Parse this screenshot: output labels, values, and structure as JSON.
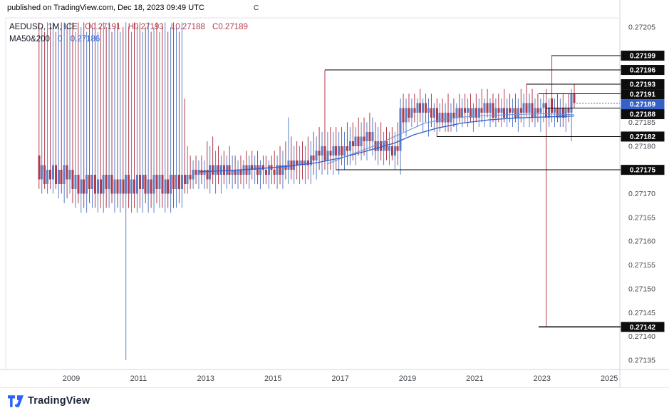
{
  "header": {
    "published_line": "published on TradingView.com, Dec 18, 2023 09:49 UTC",
    "stray_char": "C"
  },
  "legend": {
    "symbol_title": "AEDUSD, 1M, ICE",
    "ohlc": [
      "O0.27191",
      "H0.27193",
      "L0.27188",
      "C0.27189"
    ],
    "ma_label": "MA50&200",
    "ma_param": "0",
    "ma_value": "0.27186"
  },
  "footer": {
    "brand": "TradingView"
  },
  "colors": {
    "up": "#5b80c9",
    "down": "#b23a4a",
    "ma": "#2c5fd1",
    "ma2": "#6f93dc",
    "level_line": "#000000",
    "level_badge_bg": "#0d0d0d",
    "current_badge_bg": "#3461c7",
    "badge_text": "#ffffff",
    "axis_text": "#44484f",
    "frame": "#e0e3eb"
  },
  "chart_data": {
    "type": "candlestick",
    "title": "AEDUSD, 1M, ICE",
    "symbol": "AEDUSD",
    "timeframe": "1M",
    "price_encoding": "integer n means price = 0.27 + n/100000",
    "start_year": 2008,
    "interval_months": 1,
    "x_axis": {
      "ticks": [
        2009,
        2011,
        2013,
        2015,
        2017,
        2019,
        2021,
        2023,
        2025
      ],
      "range": [
        2007.7,
        2025.3
      ]
    },
    "y_axis": {
      "range": [
        0.27133,
        0.27207
      ],
      "visible_ticks": [
        "0.27205",
        "0.27185",
        "0.27180",
        "0.27170",
        "0.27165",
        "0.27160",
        "0.27155",
        "0.27150",
        "0.27145",
        "0.27140",
        "0.27135"
      ]
    },
    "grid": false,
    "legend_position": "top-left",
    "current_price": {
      "label": "0.27189",
      "price": 189
    },
    "levels": [
      {
        "label": "0.27199",
        "price": 199,
        "from": 2023.28
      },
      {
        "label": "0.27196",
        "price": 196,
        "from": 2016.54
      },
      {
        "label": "0.27193",
        "price": 193,
        "from": 2022.54
      },
      {
        "label": "0.27191",
        "price": 191,
        "from": 2022.9
      },
      {
        "label": "0.27188",
        "price": 188,
        "from": 2023.12
      },
      {
        "label": "0.27182",
        "price": 182,
        "from": 2019.87
      },
      {
        "label": "0.27175",
        "price": 175,
        "from": 2016.87
      },
      {
        "label": "0.27142",
        "price": 142,
        "from": 2022.9
      }
    ],
    "ma200": [
      [
        2012.8,
        174.6
      ],
      [
        2013.5,
        174.8
      ],
      [
        2014.5,
        175.2
      ],
      [
        2015.5,
        175.8
      ],
      [
        2016.3,
        176.5
      ],
      [
        2017.0,
        177.5
      ],
      [
        2017.8,
        179.0
      ],
      [
        2018.6,
        180.6
      ],
      [
        2019.2,
        182.4
      ],
      [
        2019.9,
        183.8
      ],
      [
        2020.6,
        184.8
      ],
      [
        2021.4,
        185.5
      ],
      [
        2022.2,
        185.9
      ],
      [
        2023.0,
        186.1
      ],
      [
        2023.95,
        186.3
      ]
    ],
    "ma50": [
      [
        2016.6,
        176.2
      ],
      [
        2017.3,
        178.2
      ],
      [
        2018.0,
        180.0
      ],
      [
        2018.8,
        182.6
      ],
      [
        2019.5,
        184.8
      ],
      [
        2020.2,
        185.8
      ],
      [
        2021.0,
        186.3
      ],
      [
        2022.0,
        186.6
      ],
      [
        2023.0,
        186.8
      ],
      [
        2023.95,
        186.6
      ]
    ],
    "candles": [
      [
        178,
        206,
        171,
        173
      ],
      [
        173,
        205,
        170,
        176
      ],
      [
        176,
        204,
        171,
        172
      ],
      [
        172,
        206,
        170,
        175
      ],
      [
        175,
        205,
        171,
        173
      ],
      [
        173,
        206,
        170,
        176
      ],
      [
        176,
        204,
        171,
        172
      ],
      [
        172,
        205,
        169,
        175
      ],
      [
        175,
        206,
        170,
        172
      ],
      [
        172,
        206,
        168,
        176
      ],
      [
        176,
        205,
        169,
        173
      ],
      [
        173,
        206,
        170,
        175
      ],
      [
        175,
        206,
        168,
        171
      ],
      [
        171,
        204,
        167,
        174
      ],
      [
        174,
        206,
        168,
        170
      ],
      [
        170,
        205,
        166,
        173
      ],
      [
        173,
        206,
        167,
        170
      ],
      [
        170,
        204,
        166,
        174
      ],
      [
        174,
        206,
        168,
        171
      ],
      [
        171,
        205,
        167,
        174
      ],
      [
        174,
        206,
        167,
        170
      ],
      [
        170,
        204,
        166,
        173
      ],
      [
        173,
        205,
        167,
        170
      ],
      [
        170,
        206,
        166,
        174
      ],
      [
        174,
        205,
        167,
        171
      ],
      [
        171,
        206,
        167,
        174
      ],
      [
        174,
        204,
        168,
        170
      ],
      [
        170,
        205,
        166,
        173
      ],
      [
        173,
        206,
        167,
        170
      ],
      [
        170,
        204,
        166,
        173
      ],
      [
        173,
        205,
        167,
        170
      ],
      [
        170,
        206,
        135,
        174
      ],
      [
        174,
        205,
        167,
        170
      ],
      [
        170,
        204,
        166,
        173
      ],
      [
        173,
        206,
        167,
        170
      ],
      [
        170,
        205,
        166,
        174
      ],
      [
        174,
        206,
        167,
        171
      ],
      [
        171,
        204,
        166,
        174
      ],
      [
        174,
        205,
        168,
        170
      ],
      [
        170,
        206,
        166,
        173
      ],
      [
        173,
        204,
        167,
        170
      ],
      [
        170,
        205,
        166,
        174
      ],
      [
        174,
        206,
        168,
        171
      ],
      [
        171,
        204,
        167,
        174
      ],
      [
        174,
        205,
        167,
        170
      ],
      [
        170,
        206,
        166,
        173
      ],
      [
        173,
        204,
        167,
        170
      ],
      [
        170,
        205,
        166,
        174
      ],
      [
        174,
        206,
        167,
        171
      ],
      [
        171,
        205,
        167,
        174
      ],
      [
        174,
        204,
        168,
        171
      ],
      [
        171,
        206,
        167,
        174
      ],
      [
        174,
        190,
        170,
        172
      ],
      [
        172,
        180,
        170,
        174
      ],
      [
        174,
        178,
        171,
        173
      ],
      [
        173,
        177,
        171,
        175
      ],
      [
        175,
        178,
        172,
        174
      ],
      [
        174,
        177,
        171,
        175
      ],
      [
        175,
        178,
        172,
        174
      ],
      [
        174,
        177,
        171,
        175
      ],
      [
        175,
        181,
        171,
        173
      ],
      [
        173,
        180,
        170,
        176
      ],
      [
        176,
        182,
        172,
        174
      ],
      [
        174,
        179,
        170,
        176
      ],
      [
        176,
        180,
        172,
        174
      ],
      [
        174,
        178,
        170,
        176
      ],
      [
        176,
        179,
        172,
        174
      ],
      [
        174,
        178,
        171,
        176
      ],
      [
        176,
        180,
        172,
        174
      ],
      [
        174,
        178,
        171,
        175
      ],
      [
        175,
        178,
        172,
        174
      ],
      [
        174,
        177,
        171,
        175
      ],
      [
        175,
        178,
        172,
        174
      ],
      [
        174,
        177,
        171,
        176
      ],
      [
        176,
        179,
        172,
        174
      ],
      [
        174,
        178,
        171,
        176
      ],
      [
        176,
        179,
        173,
        175
      ],
      [
        175,
        178,
        172,
        176
      ],
      [
        176,
        179,
        172,
        174
      ],
      [
        174,
        177,
        171,
        176
      ],
      [
        176,
        178,
        172,
        175
      ],
      [
        175,
        178,
        172,
        174
      ],
      [
        174,
        177,
        171,
        176
      ],
      [
        176,
        178,
        172,
        175
      ],
      [
        175,
        179,
        172,
        174
      ],
      [
        174,
        178,
        171,
        176
      ],
      [
        176,
        180,
        172,
        174
      ],
      [
        174,
        179,
        171,
        176
      ],
      [
        176,
        181,
        173,
        175
      ],
      [
        175,
        186,
        172,
        177
      ],
      [
        177,
        182,
        173,
        175
      ],
      [
        175,
        180,
        172,
        177
      ],
      [
        177,
        181,
        173,
        176
      ],
      [
        176,
        180,
        172,
        177
      ],
      [
        177,
        181,
        173,
        176
      ],
      [
        176,
        180,
        172,
        177
      ],
      [
        177,
        182,
        173,
        176
      ],
      [
        176,
        181,
        172,
        178
      ],
      [
        178,
        183,
        174,
        177
      ],
      [
        177,
        182,
        173,
        179
      ],
      [
        179,
        184,
        175,
        178
      ],
      [
        178,
        183,
        174,
        180
      ],
      [
        180,
        196,
        175,
        177
      ],
      [
        177,
        183,
        174,
        179
      ],
      [
        179,
        184,
        175,
        178
      ],
      [
        178,
        183,
        174,
        180
      ],
      [
        180,
        184,
        175,
        178
      ],
      [
        178,
        183,
        174,
        180
      ],
      [
        180,
        184,
        176,
        178
      ],
      [
        178,
        183,
        175,
        180
      ],
      [
        180,
        185,
        176,
        179
      ],
      [
        179,
        184,
        176,
        181
      ],
      [
        181,
        185,
        177,
        180
      ],
      [
        180,
        184,
        176,
        182
      ],
      [
        182,
        186,
        178,
        180
      ],
      [
        180,
        185,
        177,
        182
      ],
      [
        182,
        186,
        178,
        181
      ],
      [
        181,
        185,
        177,
        183
      ],
      [
        183,
        187,
        179,
        181
      ],
      [
        181,
        186,
        178,
        183
      ],
      [
        181,
        185,
        177,
        179
      ],
      [
        179,
        184,
        176,
        181
      ],
      [
        181,
        185,
        177,
        179
      ],
      [
        179,
        183,
        176,
        181
      ],
      [
        181,
        184,
        177,
        179
      ],
      [
        179,
        183,
        176,
        180
      ],
      [
        180,
        184,
        177,
        178
      ],
      [
        178,
        183,
        175,
        180
      ],
      [
        180,
        185,
        176,
        179
      ],
      [
        179,
        190,
        174,
        188
      ],
      [
        188,
        191,
        183,
        185
      ],
      [
        185,
        190,
        182,
        188
      ],
      [
        188,
        191,
        185,
        186
      ],
      [
        186,
        190,
        184,
        188
      ],
      [
        188,
        191,
        185,
        187
      ],
      [
        187,
        190,
        184,
        189
      ],
      [
        189,
        192,
        185,
        187
      ],
      [
        187,
        190,
        183,
        189
      ],
      [
        189,
        191,
        185,
        187
      ],
      [
        187,
        190,
        182,
        188
      ],
      [
        188,
        191,
        184,
        186
      ],
      [
        186,
        189,
        183,
        188
      ],
      [
        188,
        190,
        182,
        185
      ],
      [
        185,
        189,
        183,
        187
      ],
      [
        187,
        190,
        184,
        185
      ],
      [
        185,
        189,
        183,
        187
      ],
      [
        187,
        191,
        183,
        185
      ],
      [
        185,
        189,
        183,
        187
      ],
      [
        187,
        190,
        184,
        186
      ],
      [
        186,
        189,
        183,
        188
      ],
      [
        188,
        191,
        185,
        186
      ],
      [
        186,
        190,
        184,
        188
      ],
      [
        188,
        191,
        185,
        187
      ],
      [
        187,
        190,
        184,
        188
      ],
      [
        188,
        191,
        185,
        186
      ],
      [
        186,
        189,
        183,
        188
      ],
      [
        188,
        191,
        185,
        186
      ],
      [
        186,
        190,
        184,
        188
      ],
      [
        188,
        192,
        185,
        187
      ],
      [
        187,
        190,
        184,
        189
      ],
      [
        189,
        192,
        186,
        187
      ],
      [
        187,
        190,
        184,
        189
      ],
      [
        189,
        191,
        185,
        186
      ],
      [
        186,
        190,
        184,
        188
      ],
      [
        188,
        191,
        185,
        187
      ],
      [
        187,
        190,
        184,
        188
      ],
      [
        188,
        192,
        185,
        186
      ],
      [
        186,
        190,
        184,
        188
      ],
      [
        188,
        191,
        185,
        187
      ],
      [
        187,
        190,
        184,
        188
      ],
      [
        188,
        191,
        185,
        186
      ],
      [
        186,
        190,
        183,
        188
      ],
      [
        188,
        192,
        185,
        187
      ],
      [
        187,
        191,
        184,
        189
      ],
      [
        189,
        193,
        186,
        187
      ],
      [
        187,
        191,
        184,
        189
      ],
      [
        189,
        192,
        185,
        186
      ],
      [
        186,
        190,
        184,
        188
      ],
      [
        188,
        191,
        185,
        187
      ],
      [
        187,
        190,
        183,
        188
      ],
      [
        188,
        191,
        185,
        189
      ],
      [
        189,
        192,
        142,
        186
      ],
      [
        186,
        190,
        184,
        188
      ],
      [
        190,
        199,
        185,
        187
      ],
      [
        187,
        190,
        184,
        188
      ],
      [
        188,
        191,
        185,
        186
      ],
      [
        186,
        190,
        184,
        188
      ],
      [
        188,
        191,
        184,
        186
      ],
      [
        186,
        189,
        183,
        188
      ],
      [
        188,
        191,
        185,
        187
      ],
      [
        187,
        192,
        181,
        191
      ],
      [
        191,
        193,
        188,
        189
      ]
    ]
  }
}
